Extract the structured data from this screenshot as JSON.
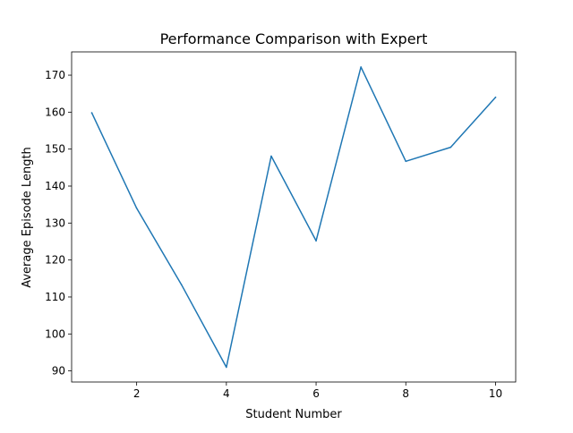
{
  "chart_data": {
    "type": "line",
    "title": "Performance Comparison with Expert",
    "xlabel": "Student Number",
    "ylabel": "Average Episode Length",
    "x": [
      1,
      2,
      3,
      4,
      5,
      6,
      7,
      8,
      9,
      10
    ],
    "series": [
      {
        "values": [
          159.8,
          134.0,
          113.3,
          91.0,
          148.1,
          125.2,
          172.2,
          146.7,
          150.5,
          164.0
        ],
        "color": "#1f77b4"
      }
    ],
    "xlim": [
      0.55,
      10.45
    ],
    "ylim": [
      87.0,
      176.3
    ],
    "xticks": [
      2,
      4,
      6,
      8,
      10
    ],
    "yticks": [
      90,
      100,
      110,
      120,
      130,
      140,
      150,
      160,
      170
    ],
    "grid": false,
    "legend": "none"
  }
}
